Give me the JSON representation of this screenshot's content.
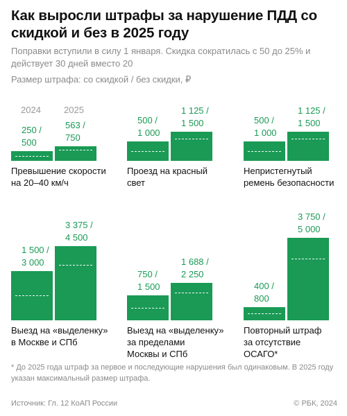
{
  "title": "Как выросли штрафы за нарушение ПДД со скидкой и без в 2025 году",
  "subtitle": "Поправки вступили в силу 1 января. Скидка сократилась с 50 до 25% и действует 30 дней вместо 20",
  "units": "Размер штрафа: со скидкой / без скидки, ₽",
  "colors": {
    "bar": "#1a9a55",
    "text": "#111111",
    "muted": "#8a8a8a"
  },
  "chart_data": {
    "type": "bar",
    "years": [
      "2024",
      "2025"
    ],
    "panels": [
      {
        "category": [
          "Превышение скорости",
          "на 20–40 км/ч"
        ],
        "bars": [
          {
            "year": "2024",
            "discount": 250,
            "full": 500,
            "label": [
              "250 /",
              "500"
            ]
          },
          {
            "year": "2025",
            "discount": 563,
            "full": 750,
            "label": [
              "563 /",
              "750"
            ]
          }
        ]
      },
      {
        "category": [
          "Проезд на красный",
          "свет"
        ],
        "bars": [
          {
            "year": "2024",
            "discount": 500,
            "full": 1000,
            "label": [
              "500 /",
              "1 000"
            ]
          },
          {
            "year": "2025",
            "discount": 1125,
            "full": 1500,
            "label": [
              "1 125 /",
              "1 500"
            ]
          }
        ]
      },
      {
        "category": [
          "Непристегнутый",
          "ремень безопасности"
        ],
        "bars": [
          {
            "year": "2024",
            "discount": 500,
            "full": 1000,
            "label": [
              "500 /",
              "1 000"
            ]
          },
          {
            "year": "2025",
            "discount": 1125,
            "full": 1500,
            "label": [
              "1 125 /",
              "1 500"
            ]
          }
        ]
      },
      {
        "category": [
          "Выезд на «выделенку»",
          "в Москве и СПб"
        ],
        "bars": [
          {
            "year": "2024",
            "discount": 1500,
            "full": 3000,
            "label": [
              "1 500 /",
              "3 000"
            ]
          },
          {
            "year": "2025",
            "discount": 3375,
            "full": 4500,
            "label": [
              "3 375 /",
              "4 500"
            ]
          }
        ]
      },
      {
        "category": [
          "Выезд на «выделенку»",
          "за пределами",
          "Москвы и СПб"
        ],
        "bars": [
          {
            "year": "2024",
            "discount": 750,
            "full": 1500,
            "label": [
              "750 /",
              "1 500"
            ]
          },
          {
            "year": "2025",
            "discount": 1688,
            "full": 2250,
            "label": [
              "1 688 /",
              "2 250"
            ]
          }
        ]
      },
      {
        "category": [
          "Повторный штраф",
          "за отсутствие",
          "ОСАГО*"
        ],
        "bars": [
          {
            "year": "2024",
            "discount": 400,
            "full": 800,
            "label": [
              "400 /",
              "800"
            ]
          },
          {
            "year": "2025",
            "discount": 3750,
            "full": 5000,
            "label": [
              "3 750 /",
              "5 000"
            ]
          }
        ]
      }
    ]
  },
  "footnote": "* До 2025 года штраф за первое и последующие нарушения был одинаковым. В 2025 году указан максимальный размер штрафа.",
  "source": "Источник: Гл. 12 КоАП России",
  "copyright": "© РБК, 2024"
}
